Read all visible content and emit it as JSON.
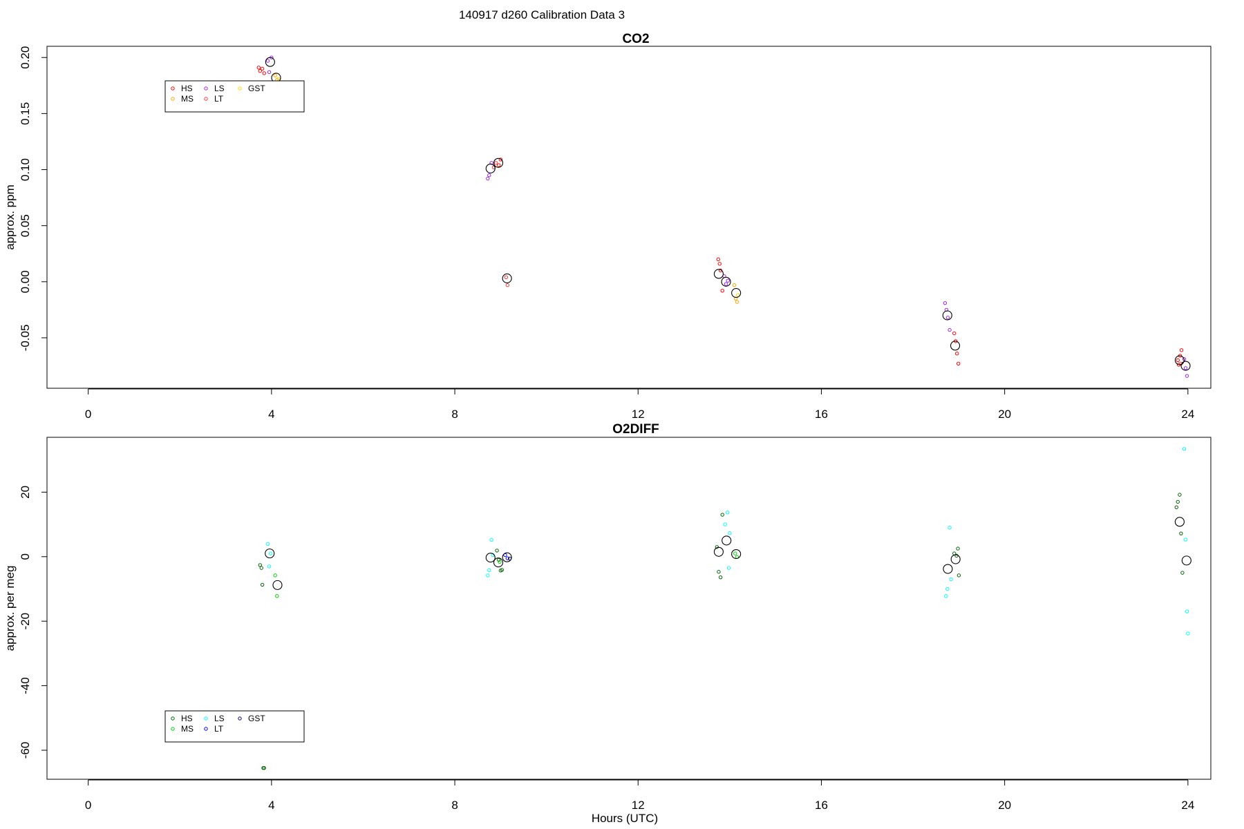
{
  "suptitle": "140917   d260   Calibration Data 3",
  "chart_data": [
    {
      "type": "scatter",
      "title": "CO2",
      "ylabel": "approx. ppm",
      "xlabel": "",
      "xlim": [
        -0.9,
        24.5
      ],
      "ylim": [
        -0.095,
        0.21
      ],
      "xticks": [
        0,
        4,
        8,
        12,
        16,
        20,
        24
      ],
      "xtick_labels": [
        "0",
        "4",
        "8",
        "12",
        "16",
        "20",
        "24"
      ],
      "yticks": [
        -0.05,
        0,
        0.05,
        0.1,
        0.15,
        0.2
      ],
      "ytick_labels": [
        "-0.05",
        "0.00",
        "0.05",
        "0.10",
        "0.15",
        "0.20"
      ],
      "grid": false,
      "legend_position": "top-left",
      "legend": [
        {
          "label": "HS",
          "color": "#ff0000"
        },
        {
          "label": "MS",
          "color": "#ffa500"
        },
        {
          "label": "LS",
          "color": "#a020f0"
        },
        {
          "label": "LT",
          "color": "#ff3333"
        },
        {
          "label": "GST",
          "color": "#ffd700"
        }
      ],
      "series": [
        {
          "name": "HS",
          "color": "#ff0000",
          "x": [
            3.72,
            3.75,
            3.8,
            3.84,
            8.96,
            9.0,
            13.75,
            13.78,
            13.8,
            13.84,
            18.9,
            18.93,
            18.96,
            18.99,
            23.78,
            23.8,
            23.83,
            23.86
          ],
          "y": [
            0.191,
            0.188,
            0.19,
            0.186,
            0.104,
            0.109,
            0.02,
            0.016,
            0.01,
            -0.008,
            -0.046,
            -0.053,
            -0.064,
            -0.073,
            -0.07,
            -0.074,
            -0.066,
            -0.061
          ]
        },
        {
          "name": "MS",
          "color": "#ffa500",
          "x": [
            4.08,
            4.12,
            14.1,
            14.13,
            14.16
          ],
          "y": [
            0.184,
            0.18,
            -0.003,
            -0.015,
            -0.018
          ]
        },
        {
          "name": "LS",
          "color": "#a020f0",
          "x": [
            3.92,
            3.95,
            4.0,
            8.72,
            8.75,
            8.8,
            13.88,
            13.92,
            13.96,
            18.7,
            18.73,
            18.76,
            18.8,
            23.92,
            23.95,
            23.98
          ],
          "y": [
            0.197,
            0.187,
            0.2,
            0.092,
            0.095,
            0.106,
            0.005,
            -0.002,
            0.001,
            -0.019,
            -0.025,
            -0.032,
            -0.043,
            -0.069,
            -0.077,
            -0.084
          ]
        },
        {
          "name": "LT",
          "color": "#ff3333",
          "x": [
            8.85,
            8.9,
            9.12,
            9.15,
            23.85
          ],
          "y": [
            0.102,
            0.106,
            0.004,
            -0.003,
            -0.073
          ]
        },
        {
          "name": "GST",
          "color": "#ffd700",
          "x": [
            4.15,
            14.18
          ],
          "y": [
            0.181,
            -0.012
          ]
        },
        {
          "name": "mean",
          "color": "#000000",
          "big": true,
          "x": [
            3.97,
            4.1,
            8.78,
            8.95,
            9.14,
            13.76,
            13.92,
            14.14,
            18.75,
            18.92,
            23.82,
            23.95
          ],
          "y": [
            0.196,
            0.182,
            0.101,
            0.106,
            0.003,
            0.007,
            0.0,
            -0.01,
            -0.03,
            -0.057,
            -0.07,
            -0.075
          ]
        }
      ]
    },
    {
      "type": "scatter",
      "title": "O2DIFF",
      "ylabel": "approx. per meg",
      "xlabel": "Hours (UTC)",
      "xlim": [
        -0.9,
        24.5
      ],
      "ylim": [
        -69,
        37
      ],
      "xticks": [
        0,
        4,
        8,
        12,
        16,
        20,
        24
      ],
      "xtick_labels": [
        "0",
        "4",
        "8",
        "12",
        "16",
        "20",
        "24"
      ],
      "yticks": [
        -60,
        -40,
        -20,
        0,
        20
      ],
      "ytick_labels": [
        "-60",
        "-40",
        "-20",
        "0",
        "20"
      ],
      "grid": false,
      "legend_position": "bottom-left",
      "legend": [
        {
          "label": "HS",
          "color": "#006400"
        },
        {
          "label": "MS",
          "color": "#00cc00"
        },
        {
          "label": "LS",
          "color": "#00ffff"
        },
        {
          "label": "LT",
          "color": "#0000ff"
        },
        {
          "label": "GST",
          "color": "#00008b"
        }
      ],
      "series": [
        {
          "name": "HS",
          "color": "#006400",
          "x": [
            3.75,
            3.78,
            3.8,
            3.82,
            3.84,
            8.92,
            8.96,
            9.0,
            9.03,
            13.72,
            13.76,
            13.8,
            13.84,
            18.9,
            18.95,
            18.98,
            19.0,
            23.75,
            23.78,
            23.82,
            23.85,
            23.88
          ],
          "y": [
            -2.6,
            -3.5,
            -8.7,
            -65.5,
            -65.5,
            1.9,
            -1.0,
            -4.3,
            -4.1,
            3.0,
            -4.7,
            -6.4,
            13.0,
            1.0,
            0.3,
            2.5,
            -5.8,
            15.3,
            17.0,
            19.2,
            7.2,
            -5.0
          ]
        },
        {
          "name": "MS",
          "color": "#00cc00",
          "x": [
            4.08,
            4.12,
            8.98,
            14.12,
            14.16
          ],
          "y": [
            -5.8,
            -12.2,
            -1.6,
            1.0,
            -0.1
          ]
        },
        {
          "name": "LS",
          "color": "#00ffff",
          "x": [
            3.92,
            3.95,
            3.98,
            8.72,
            8.75,
            8.8,
            8.83,
            13.9,
            13.95,
            13.98,
            14.0,
            18.72,
            18.75,
            18.8,
            18.83,
            23.92,
            23.95,
            23.98,
            24.0
          ],
          "y": [
            3.9,
            -3.0,
            1.0,
            -5.8,
            -4.2,
            5.2,
            0.5,
            10.0,
            13.7,
            -3.5,
            7.3,
            -12.2,
            -10.0,
            9.0,
            -7.0,
            33.4,
            5.3,
            -17.0,
            -23.8
          ]
        },
        {
          "name": "LT",
          "color": "#0000ff",
          "x": [
            9.1,
            9.15
          ],
          "y": [
            0.5,
            -0.5
          ]
        },
        {
          "name": "GST",
          "color": "#00008b",
          "x": [
            9.2
          ],
          "y": [
            -0.6
          ]
        },
        {
          "name": "mean",
          "color": "#000000",
          "big": true,
          "x": [
            3.96,
            4.13,
            8.78,
            8.95,
            9.14,
            13.76,
            13.93,
            14.14,
            18.76,
            18.93,
            23.82,
            23.97
          ],
          "y": [
            1.0,
            -8.8,
            -0.3,
            -1.8,
            -0.2,
            1.5,
            5.0,
            0.8,
            -3.8,
            -0.8,
            10.8,
            -1.2
          ]
        }
      ]
    }
  ]
}
